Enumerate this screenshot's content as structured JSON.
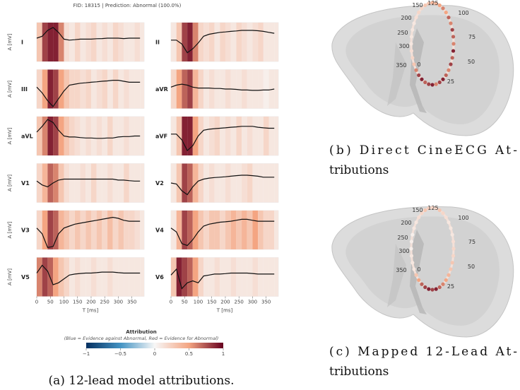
{
  "figure_a": {
    "title": "FID: 18315 | Prediction: Abnormal (100.0%)",
    "y_label": "A [mV]",
    "x_label": "T [ms]",
    "xlim": [
      0,
      395
    ],
    "ylim": [
      -1,
      1
    ],
    "xticks": [
      0,
      50,
      100,
      150,
      200,
      250,
      300,
      350
    ],
    "t": [
      0,
      20,
      40,
      60,
      80,
      100,
      120,
      140,
      160,
      180,
      200,
      220,
      240,
      260,
      280,
      300,
      320,
      340,
      360,
      380
    ],
    "leads": [
      {
        "name": "I",
        "signal": [
          0.2,
          0.3,
          0.6,
          0.75,
          0.5,
          0.15,
          0.1,
          0.12,
          0.15,
          0.15,
          0.15,
          0.17,
          0.18,
          0.2,
          0.2,
          0.2,
          0.18,
          0.2,
          0.2,
          0.2
        ],
        "attribution": [
          0.3,
          0.8,
          0.9,
          0.9,
          0.6,
          0.15,
          0.1,
          0.2,
          0.1,
          0.15,
          0.2,
          0.1,
          0.15,
          0.1,
          0.2,
          0.15,
          0.1,
          0.1,
          0.15,
          0.1
        ]
      },
      {
        "name": "II",
        "signal": [
          0.1,
          0.1,
          -0.1,
          -0.55,
          -0.35,
          -0.05,
          0.3,
          0.4,
          0.45,
          0.5,
          0.52,
          0.55,
          0.57,
          0.6,
          0.6,
          0.6,
          0.58,
          0.55,
          0.5,
          0.45
        ],
        "attribution": [
          0.1,
          0.3,
          0.8,
          0.9,
          0.6,
          0.2,
          0.15,
          0.2,
          0.1,
          0.2,
          0.15,
          0.1,
          0.2,
          0.15,
          0.1,
          0.15,
          0.2,
          0.1,
          0.1,
          0.1
        ]
      },
      {
        "name": "III",
        "signal": [
          0.1,
          -0.2,
          -0.6,
          -0.9,
          -0.5,
          -0.1,
          0.2,
          0.25,
          0.3,
          0.32,
          0.35,
          0.37,
          0.4,
          0.42,
          0.45,
          0.45,
          0.4,
          0.35,
          0.35,
          0.35
        ],
        "attribution": [
          0.2,
          0.5,
          0.9,
          0.8,
          0.5,
          0.3,
          0.2,
          0.2,
          0.15,
          0.2,
          0.1,
          0.15,
          0.2,
          0.1,
          0.2,
          0.1,
          0.15,
          0.1,
          0.1,
          0.1
        ]
      },
      {
        "name": "aVR",
        "signal": [
          0.1,
          0.2,
          0.25,
          0.2,
          0.1,
          0.05,
          0.05,
          0.05,
          0.03,
          0.03,
          0.0,
          0.0,
          -0.02,
          -0.05,
          -0.05,
          -0.07,
          -0.07,
          -0.05,
          -0.05,
          0.0
        ],
        "attribution": [
          0.2,
          0.5,
          0.7,
          0.8,
          0.4,
          0.2,
          0.1,
          0.15,
          0.1,
          0.1,
          0.15,
          0.1,
          0.1,
          0.15,
          0.1,
          0.1,
          0.1,
          0.05,
          0.1,
          0.1
        ]
      },
      {
        "name": "aVL",
        "signal": [
          0.2,
          0.5,
          0.85,
          0.7,
          0.3,
          0.0,
          -0.05,
          -0.05,
          -0.08,
          -0.1,
          -0.1,
          -0.12,
          -0.12,
          -0.1,
          -0.1,
          -0.05,
          -0.03,
          -0.03,
          0.0,
          0.0
        ],
        "attribution": [
          0.3,
          0.6,
          0.9,
          0.8,
          0.5,
          0.3,
          0.2,
          0.15,
          0.1,
          0.15,
          0.1,
          0.15,
          0.1,
          0.2,
          0.1,
          0.1,
          0.15,
          0.1,
          0.1,
          0.1
        ]
      },
      {
        "name": "aVF",
        "signal": [
          0.1,
          0.1,
          -0.2,
          -0.75,
          -0.5,
          0.0,
          0.3,
          0.35,
          0.38,
          0.4,
          0.42,
          0.45,
          0.47,
          0.5,
          0.5,
          0.5,
          0.45,
          0.42,
          0.4,
          0.4
        ],
        "attribution": [
          0.1,
          0.3,
          0.9,
          0.9,
          0.5,
          0.2,
          0.1,
          0.15,
          0.2,
          0.1,
          0.15,
          0.1,
          0.2,
          0.1,
          0.15,
          0.1,
          0.1,
          0.2,
          0.1,
          0.1
        ]
      },
      {
        "name": "V1",
        "signal": [
          0.1,
          -0.1,
          -0.2,
          0.0,
          0.15,
          0.2,
          0.2,
          0.2,
          0.2,
          0.2,
          0.2,
          0.2,
          0.2,
          0.2,
          0.2,
          0.15,
          0.15,
          0.12,
          0.1,
          0.1
        ],
        "attribution": [
          0.2,
          0.4,
          0.7,
          0.6,
          0.3,
          0.15,
          0.1,
          0.1,
          0.15,
          0.1,
          0.2,
          0.1,
          0.1,
          0.15,
          0.1,
          0.1,
          0.2,
          0.1,
          0.1,
          0.1
        ]
      },
      {
        "name": "V2",
        "signal": [
          0.0,
          -0.05,
          -0.4,
          -0.6,
          -0.2,
          0.1,
          0.2,
          0.25,
          0.28,
          0.3,
          0.32,
          0.35,
          0.38,
          0.4,
          0.4,
          0.38,
          0.35,
          0.3,
          0.3,
          0.3
        ],
        "attribution": [
          0.1,
          0.3,
          0.8,
          0.7,
          0.4,
          0.2,
          0.1,
          0.15,
          0.1,
          0.1,
          0.15,
          0.1,
          0.1,
          0.15,
          0.2,
          0.1,
          0.1,
          0.1,
          0.1,
          0.1
        ]
      },
      {
        "name": "V3",
        "signal": [
          0.1,
          -0.2,
          -0.9,
          -0.85,
          -0.2,
          0.1,
          0.2,
          0.3,
          0.35,
          0.4,
          0.45,
          0.5,
          0.55,
          0.6,
          0.65,
          0.6,
          0.5,
          0.45,
          0.45,
          0.45
        ],
        "attribution": [
          0.2,
          0.5,
          0.8,
          0.7,
          0.4,
          0.3,
          0.2,
          0.3,
          0.2,
          0.3,
          0.2,
          0.3,
          0.2,
          0.35,
          0.2,
          0.3,
          0.2,
          0.2,
          0.15,
          0.1
        ]
      },
      {
        "name": "V4",
        "signal": [
          0.1,
          -0.1,
          -0.7,
          -0.8,
          -0.5,
          -0.1,
          0.2,
          0.3,
          0.35,
          0.4,
          0.42,
          0.45,
          0.5,
          0.55,
          0.55,
          0.5,
          0.45,
          0.45,
          0.45,
          0.45
        ],
        "attribution": [
          0.1,
          0.4,
          0.8,
          0.7,
          0.5,
          0.3,
          0.2,
          0.3,
          0.3,
          0.2,
          0.3,
          0.4,
          0.3,
          0.4,
          0.3,
          0.5,
          0.3,
          0.2,
          0.2,
          0.1
        ]
      },
      {
        "name": "V5",
        "signal": [
          0.2,
          0.6,
          0.3,
          -0.4,
          -0.3,
          -0.1,
          0.1,
          0.15,
          0.18,
          0.2,
          0.2,
          0.22,
          0.25,
          0.25,
          0.25,
          0.22,
          0.2,
          0.2,
          0.2,
          0.2
        ],
        "attribution": [
          0.6,
          0.8,
          0.7,
          0.5,
          0.3,
          0.2,
          0.1,
          0.15,
          0.1,
          0.1,
          0.15,
          0.1,
          0.1,
          0.15,
          0.1,
          0.1,
          0.1,
          0.1,
          0.1,
          0.1
        ]
      },
      {
        "name": "V6",
        "signal": [
          0.1,
          0.4,
          -0.6,
          -0.3,
          -0.2,
          -0.3,
          0.05,
          0.1,
          0.15,
          0.15,
          0.17,
          0.2,
          0.2,
          0.2,
          0.2,
          0.18,
          0.15,
          0.15,
          0.15,
          0.15
        ],
        "attribution": [
          0.3,
          0.9,
          0.8,
          0.7,
          0.5,
          0.2,
          0.1,
          0.1,
          0.15,
          0.1,
          0.1,
          0.15,
          0.1,
          0.1,
          0.1,
          0.15,
          0.1,
          0.1,
          0.1,
          0.1
        ]
      }
    ],
    "colorbar": {
      "title": "Attribution",
      "subtitle": "(Blue = Evidence against Abnormal, Red = Evidence for Abnormal)",
      "range": [
        -1,
        1
      ],
      "ticks": [
        {
          "value": -1,
          "label": "−1"
        },
        {
          "value": -0.5,
          "label": "−0.5"
        },
        0,
        0.5,
        1
      ]
    },
    "caption": "(a) 12-lead model attributions."
  },
  "figure_b": {
    "ring_labels": [
      "150",
      "125",
      "100",
      "75",
      "50",
      "25",
      "0",
      "350",
      "300",
      "250",
      "200"
    ],
    "ring_attribution": [
      0.6,
      0.8,
      0.9,
      0.7,
      0.8,
      0.9,
      0.6,
      0.8,
      0.9,
      0.7,
      0.6,
      0.8,
      0.7,
      0.9,
      0.6,
      0.7,
      0.8,
      0.6,
      0.7,
      0.5,
      0.6,
      0.5,
      0.4,
      0.4,
      0.3,
      0.3,
      0.2,
      0.2,
      0.15,
      0.1,
      0.1,
      0.1,
      0.1,
      0.15,
      0.2,
      0.3
    ],
    "caption_lines": [
      "(b) Direct CineECG At-",
      "tributions"
    ]
  },
  "figure_c": {
    "ring_labels": [
      "150",
      "125",
      "100",
      "75",
      "50",
      "25",
      "0",
      "350",
      "300",
      "250",
      "200"
    ],
    "ring_attribution": [
      0.3,
      0.5,
      0.7,
      0.8,
      0.9,
      0.8,
      0.9,
      0.7,
      0.6,
      0.5,
      0.4,
      0.3,
      0.3,
      0.2,
      0.2,
      0.15,
      0.1,
      0.1,
      0.1,
      0.15,
      0.2,
      0.3,
      0.2,
      0.2,
      0.25,
      0.3,
      0.2,
      0.15,
      0.1,
      0.1,
      0.05,
      0.05,
      0.05,
      0.1,
      0.1,
      0.1
    ],
    "caption_lines": [
      "(c) Mapped 12-Lead At-",
      "tributions"
    ]
  }
}
